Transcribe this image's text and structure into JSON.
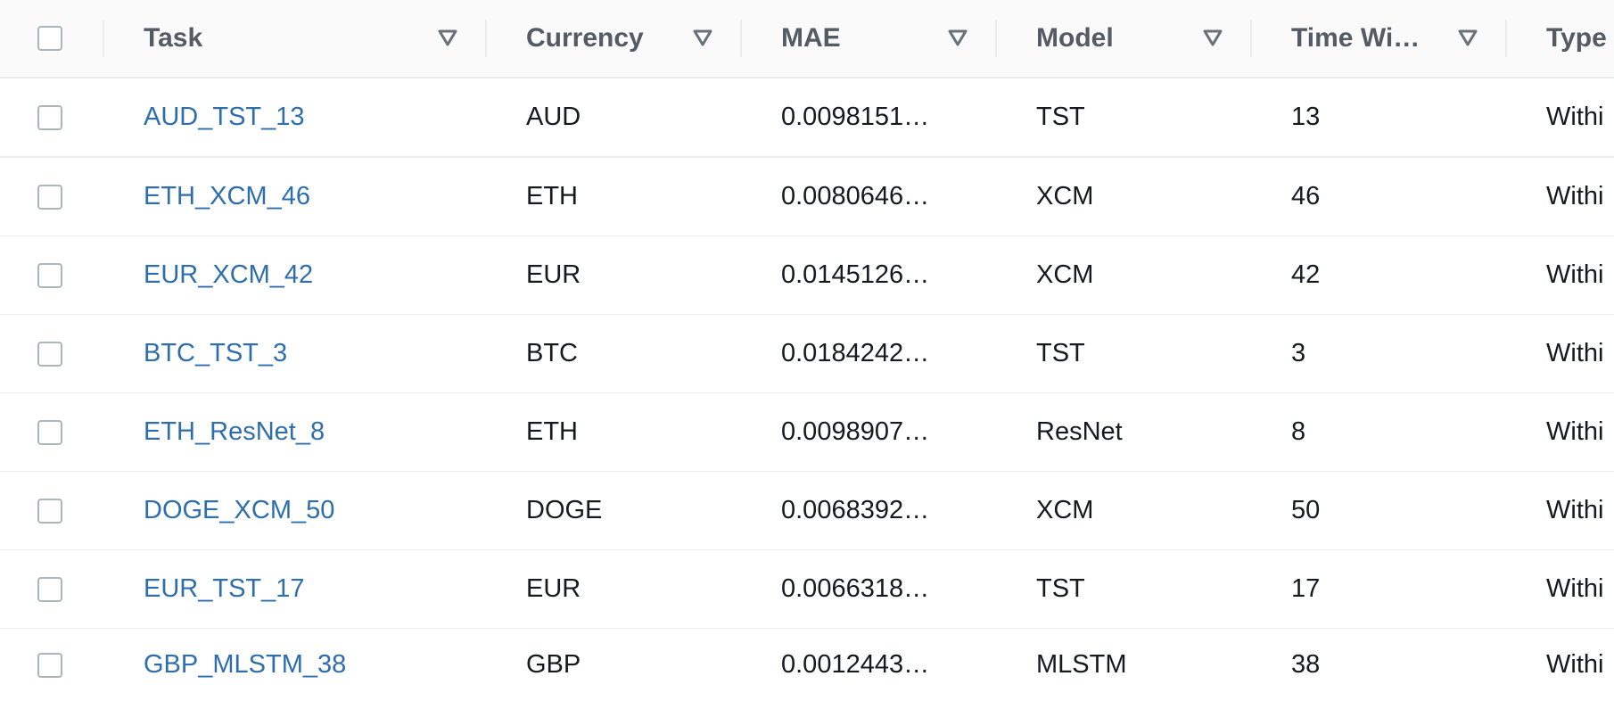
{
  "table": {
    "columns": [
      {
        "label": "Task"
      },
      {
        "label": "Currency"
      },
      {
        "label": "MAE"
      },
      {
        "label": "Model"
      },
      {
        "label": "Time Wi…"
      },
      {
        "label": "Type"
      }
    ],
    "rows": [
      {
        "task": "AUD_TST_13",
        "currency": "AUD",
        "mae": "0.0098151…",
        "model": "TST",
        "time_window": "13",
        "type": "Withi"
      },
      {
        "task": "ETH_XCM_46",
        "currency": "ETH",
        "mae": "0.0080646…",
        "model": "XCM",
        "time_window": "46",
        "type": "Withi"
      },
      {
        "task": "EUR_XCM_42",
        "currency": "EUR",
        "mae": "0.0145126…",
        "model": "XCM",
        "time_window": "42",
        "type": "Withi"
      },
      {
        "task": "BTC_TST_3",
        "currency": "BTC",
        "mae": "0.0184242…",
        "model": "TST",
        "time_window": "3",
        "type": "Withi"
      },
      {
        "task": "ETH_ResNet_8",
        "currency": "ETH",
        "mae": "0.0098907…",
        "model": "ResNet",
        "time_window": "8",
        "type": "Withi"
      },
      {
        "task": "DOGE_XCM_50",
        "currency": "DOGE",
        "mae": "0.0068392…",
        "model": "XCM",
        "time_window": "50",
        "type": "Withi"
      },
      {
        "task": "EUR_TST_17",
        "currency": "EUR",
        "mae": "0.0066318…",
        "model": "TST",
        "time_window": "17",
        "type": "Withi"
      },
      {
        "task": "GBP_MLSTM_38",
        "currency": "GBP",
        "mae": "0.0012443…",
        "model": "MLSTM",
        "time_window": "38",
        "type": "Withi"
      }
    ]
  }
}
